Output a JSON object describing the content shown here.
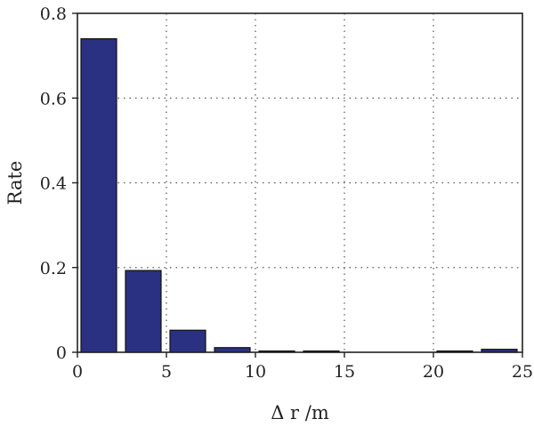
{
  "chart_data": {
    "type": "bar",
    "title": "",
    "xlabel": "Δ r /m",
    "ylabel": "Rate",
    "xlim": [
      0,
      25
    ],
    "ylim": [
      0,
      0.8
    ],
    "xticks": [
      0,
      5,
      10,
      15,
      20,
      25
    ],
    "yticks": [
      0,
      0.2,
      0.4,
      0.6,
      0.8
    ],
    "xtick_labels": [
      "0",
      "5",
      "10",
      "15",
      "20",
      "25"
    ],
    "ytick_labels": [
      "0",
      "0.2",
      "0.4",
      "0.6",
      "0.8"
    ],
    "grid": true,
    "bar_color": "#2a3182",
    "bars": [
      {
        "x0": 0.2,
        "x1": 2.2,
        "value": 0.74
      },
      {
        "x0": 2.7,
        "x1": 4.7,
        "value": 0.193
      },
      {
        "x0": 5.2,
        "x1": 7.2,
        "value": 0.052
      },
      {
        "x0": 7.7,
        "x1": 9.7,
        "value": 0.011
      },
      {
        "x0": 10.2,
        "x1": 12.2,
        "value": 0.003
      },
      {
        "x0": 12.7,
        "x1": 14.7,
        "value": 0.003
      },
      {
        "x0": 15.2,
        "x1": 17.2,
        "value": 0.0
      },
      {
        "x0": 17.7,
        "x1": 19.7,
        "value": 0.0
      },
      {
        "x0": 20.2,
        "x1": 22.2,
        "value": 0.003
      },
      {
        "x0": 22.7,
        "x1": 24.7,
        "value": 0.007
      }
    ]
  }
}
